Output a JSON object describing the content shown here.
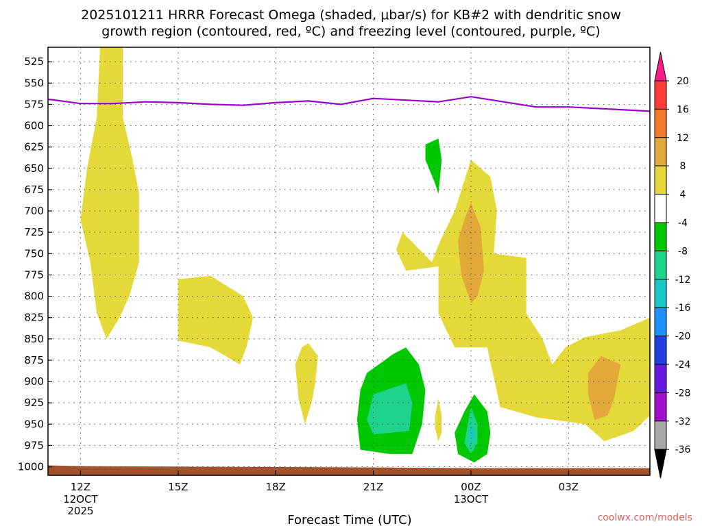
{
  "page": {
    "title_line1": "2025101211 HRRR Forecast Omega (shaded, μbar/s) for KB#2 with dendritic snow",
    "title_line2": "growth region (contoured, red, ºC) and freezing level (contoured, purple, ºC)",
    "credit": "coolwx.com/models"
  },
  "chart_data": {
    "type": "heatmap",
    "title": "2025101211 HRRR Forecast Omega (shaded, μbar/s) for KB#2 with dendritic snow growth region (contoured, red, ºC) and freezing level (contoured, purple, ºC)",
    "xlabel": "Forecast Time (UTC)",
    "ylabel": "",
    "x_unit": "hours after 2025-10-12 11Z",
    "xlim": [
      0,
      18.5
    ],
    "ylim": [
      1010,
      508
    ],
    "y_ticks": [
      525,
      550,
      575,
      600,
      625,
      650,
      675,
      700,
      725,
      750,
      775,
      800,
      825,
      850,
      875,
      900,
      925,
      950,
      975,
      1000
    ],
    "x_ticks": [
      {
        "value": 1,
        "label": "12Z",
        "sub1": "12OCT",
        "sub2": "2025"
      },
      {
        "value": 4,
        "label": "15Z",
        "sub1": "",
        "sub2": ""
      },
      {
        "value": 7,
        "label": "18Z",
        "sub1": "",
        "sub2": ""
      },
      {
        "value": 10,
        "label": "21Z",
        "sub1": "",
        "sub2": ""
      },
      {
        "value": 13,
        "label": "00Z",
        "sub1": "13OCT",
        "sub2": ""
      },
      {
        "value": 16,
        "label": "03Z",
        "sub1": "",
        "sub2": ""
      }
    ],
    "grid": true,
    "colorbar": {
      "labels": [
        "20",
        "16",
        "12",
        "8",
        "4",
        "-4",
        "-8",
        "-12",
        "-16",
        "-20",
        "-24",
        "-28",
        "-32",
        "-36"
      ],
      "colors": [
        "#ff1a8c",
        "#ff3b3b",
        "#f07b2b",
        "#e3a93a",
        "#e5d93a",
        "#ffffff",
        "#00c800",
        "#1ed38c",
        "#18c8c8",
        "#1e90ff",
        "#2040e0",
        "#6a1ae0",
        "#a010c8",
        "#a8a8a8",
        "#000000"
      ]
    },
    "freezing_level": {
      "color": "#9900cc",
      "x": [
        0,
        1,
        2,
        3,
        4,
        5,
        6,
        7,
        8,
        9,
        10,
        11,
        12,
        13,
        14,
        15,
        16,
        17,
        18,
        18.5
      ],
      "p": [
        569,
        574,
        574,
        572,
        573,
        575,
        576,
        573,
        571,
        575,
        568,
        570,
        572,
        566,
        572,
        578,
        578,
        580,
        582,
        583
      ]
    },
    "omega_regions": [
      {
        "level": 4,
        "color": "#e5d93a",
        "points": [
          [
            1.6,
            508
          ],
          [
            2.3,
            508
          ],
          [
            2.3,
            590
          ],
          [
            2.6,
            640
          ],
          [
            2.8,
            680
          ],
          [
            2.8,
            760
          ],
          [
            2.5,
            800
          ],
          [
            2.2,
            825
          ],
          [
            1.8,
            850
          ],
          [
            1.5,
            820
          ],
          [
            1.3,
            760
          ],
          [
            1,
            710
          ],
          [
            1.2,
            650
          ],
          [
            1.5,
            590
          ]
        ]
      },
      {
        "level": 4,
        "color": "#e5d93a",
        "points": [
          [
            4,
            780
          ],
          [
            5,
            776
          ],
          [
            6,
            800
          ],
          [
            6.3,
            825
          ],
          [
            6.1,
            860
          ],
          [
            5.9,
            880
          ],
          [
            5,
            860
          ],
          [
            4,
            852
          ]
        ]
      },
      {
        "level": 4,
        "color": "#e5d93a",
        "points": [
          [
            8,
            855
          ],
          [
            8.3,
            870
          ],
          [
            8.2,
            905
          ],
          [
            8.1,
            925
          ],
          [
            7.9,
            950
          ],
          [
            7.7,
            920
          ],
          [
            7.6,
            880
          ],
          [
            7.8,
            860
          ]
        ]
      },
      {
        "level": 4,
        "color": "#e5d93a",
        "points": [
          [
            10.9,
            725
          ],
          [
            11.8,
            760
          ],
          [
            12,
            740
          ],
          [
            12.5,
            700
          ],
          [
            13,
            640
          ],
          [
            13.6,
            660
          ],
          [
            13.8,
            700
          ],
          [
            13.7,
            750
          ],
          [
            14.7,
            755
          ],
          [
            14.7,
            820
          ],
          [
            15.2,
            850
          ],
          [
            15.5,
            880
          ],
          [
            15.9,
            860
          ],
          [
            16.5,
            848
          ],
          [
            17.6,
            840
          ],
          [
            18.5,
            825
          ],
          [
            18.5,
            940
          ],
          [
            18,
            958
          ],
          [
            17.1,
            970
          ],
          [
            16.5,
            950
          ],
          [
            15,
            942
          ],
          [
            13.9,
            930
          ],
          [
            13.5,
            860
          ],
          [
            12.5,
            860
          ],
          [
            12,
            820
          ],
          [
            12,
            765
          ],
          [
            11,
            770
          ],
          [
            10.7,
            745
          ]
        ]
      },
      {
        "level": 4,
        "color": "#e5d93a",
        "points": [
          [
            12,
            920
          ],
          [
            12.1,
            940
          ],
          [
            12.1,
            960
          ],
          [
            12,
            970
          ],
          [
            11.9,
            955
          ],
          [
            11.9,
            940
          ]
        ]
      },
      {
        "level": 8,
        "color": "#e3a93a",
        "points": [
          [
            13,
            690
          ],
          [
            13.3,
            720
          ],
          [
            13.4,
            770
          ],
          [
            13.2,
            800
          ],
          [
            13,
            808
          ],
          [
            12.7,
            775
          ],
          [
            12.6,
            735
          ],
          [
            12.8,
            710
          ]
        ]
      },
      {
        "level": 8,
        "color": "#e3a93a",
        "points": [
          [
            17,
            870
          ],
          [
            17.6,
            880
          ],
          [
            17.4,
            920
          ],
          [
            17.2,
            940
          ],
          [
            16.8,
            945
          ],
          [
            16.6,
            915
          ],
          [
            16.6,
            890
          ]
        ]
      },
      {
        "level": -4,
        "color": "#00c800",
        "points": [
          [
            11.6,
            622
          ],
          [
            12,
            615
          ],
          [
            12.1,
            640
          ],
          [
            12,
            680
          ],
          [
            11.9,
            668
          ],
          [
            11.6,
            640
          ]
        ]
      },
      {
        "level": -4,
        "color": "#00c800",
        "points": [
          [
            9.8,
            890
          ],
          [
            10.6,
            868
          ],
          [
            11,
            860
          ],
          [
            11.4,
            880
          ],
          [
            11.6,
            910
          ],
          [
            11.5,
            950
          ],
          [
            11.2,
            985
          ],
          [
            10.5,
            985
          ],
          [
            9.6,
            980
          ],
          [
            9.5,
            945
          ],
          [
            9.6,
            910
          ]
        ]
      },
      {
        "level": -4,
        "color": "#00c800",
        "points": [
          [
            12.8,
            935
          ],
          [
            13.1,
            915
          ],
          [
            13.5,
            935
          ],
          [
            13.6,
            960
          ],
          [
            13.5,
            985
          ],
          [
            13.1,
            995
          ],
          [
            12.6,
            985
          ],
          [
            12.5,
            960
          ]
        ]
      },
      {
        "level": -8,
        "color": "#1ed38c",
        "points": [
          [
            10,
            915
          ],
          [
            11,
            902
          ],
          [
            11.2,
            925
          ],
          [
            11.1,
            958
          ],
          [
            10,
            962
          ],
          [
            9.8,
            945
          ]
        ]
      },
      {
        "level": -8,
        "color": "#1ed38c",
        "points": [
          [
            13,
            930
          ],
          [
            13.2,
            950
          ],
          [
            13.2,
            972
          ],
          [
            13,
            985
          ],
          [
            12.8,
            972
          ],
          [
            12.9,
            950
          ]
        ]
      },
      {
        "level": -12,
        "color": "#18c8c8",
        "points": [
          [
            13,
            950
          ],
          [
            13.1,
            962
          ],
          [
            13,
            975
          ],
          [
            12.95,
            962
          ]
        ]
      }
    ],
    "terrain": {
      "color": "#a0522d",
      "top_pressure": 1000
    }
  }
}
